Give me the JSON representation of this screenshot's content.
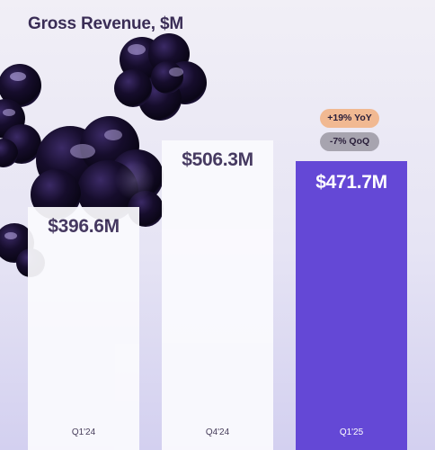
{
  "title": "Gross Revenue, $M",
  "chart_data": {
    "type": "bar",
    "title": "Gross Revenue, $M",
    "categories": [
      "Q1'24",
      "Q4'24",
      "Q1'25"
    ],
    "values": [
      396.6,
      506.3,
      471.7
    ],
    "value_labels": [
      "$396.6M",
      "$506.3M",
      "$471.7M"
    ],
    "annotations": [
      "+19% YoY",
      "-7% QoQ"
    ],
    "highlight_index": 2,
    "colors": {
      "bar": "#fbfbfe",
      "bar_highlight": "#6448d6",
      "label_dark": "#3a2d56",
      "label_light": "#ffffff",
      "yoy_pill": "#f1b992",
      "qoq_pill": "#a7a4af"
    }
  }
}
